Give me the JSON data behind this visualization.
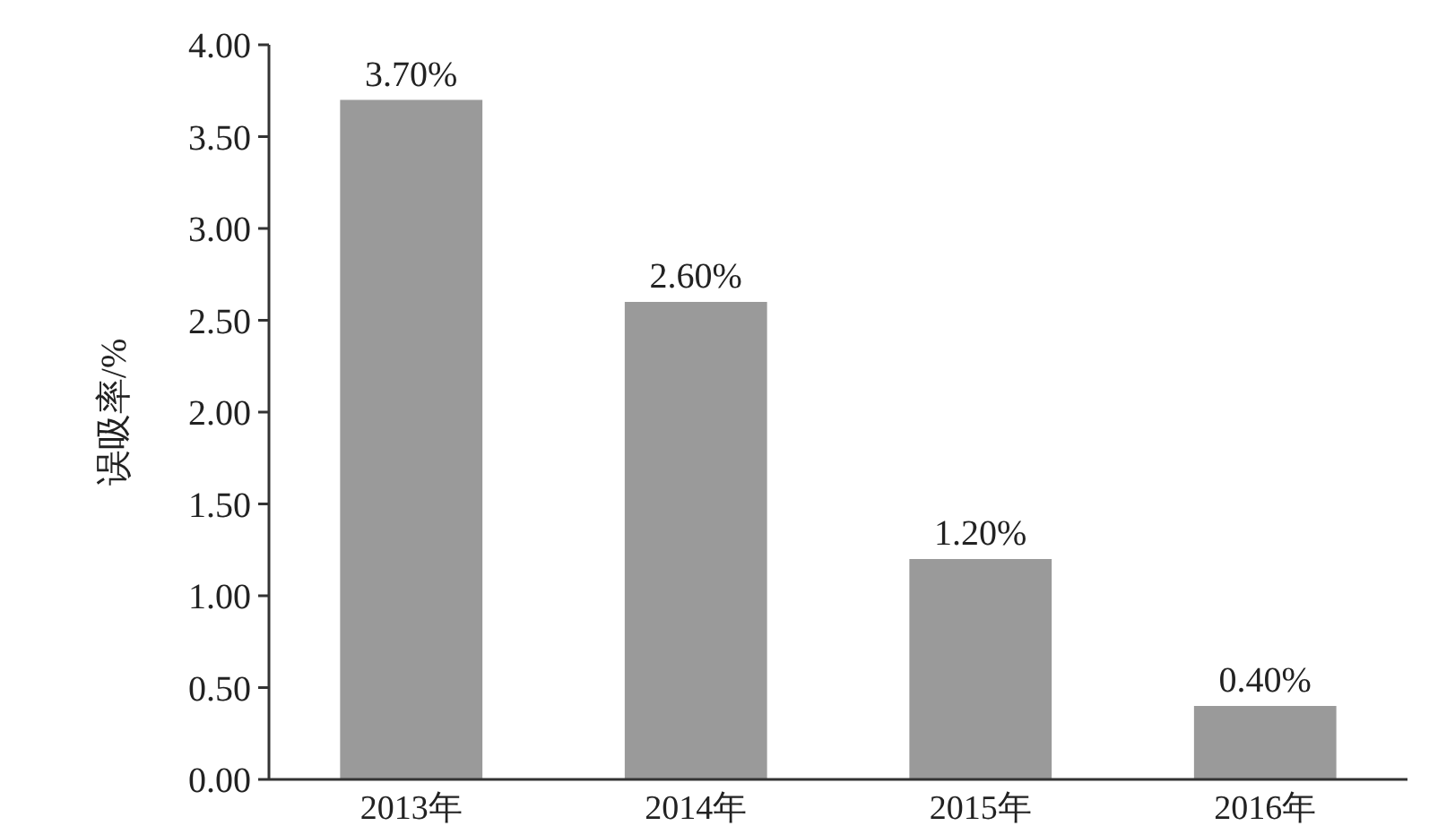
{
  "chart_data": {
    "type": "bar",
    "ylabel": "误吸率/%",
    "categories": [
      "2013年",
      "2014年",
      "2015年",
      "2016年"
    ],
    "values": [
      3.7,
      2.6,
      1.2,
      0.4
    ],
    "value_labels": [
      "3.70%",
      "2.60%",
      "1.20%",
      "0.40%"
    ],
    "color": "#9a9a9a",
    "ylim": [
      0,
      4
    ],
    "yticks": [
      {
        "value": 0,
        "label": "0.00"
      },
      {
        "value": 0.5,
        "label": "0.50"
      },
      {
        "value": 1,
        "label": "1.00"
      },
      {
        "value": 1.5,
        "label": "1.50"
      },
      {
        "value": 2,
        "label": "2.00"
      },
      {
        "value": 2.5,
        "label": "2.50"
      },
      {
        "value": 3,
        "label": "3.00"
      },
      {
        "value": 3.5,
        "label": "3.50"
      },
      {
        "value": 4,
        "label": "4.00"
      }
    ]
  }
}
